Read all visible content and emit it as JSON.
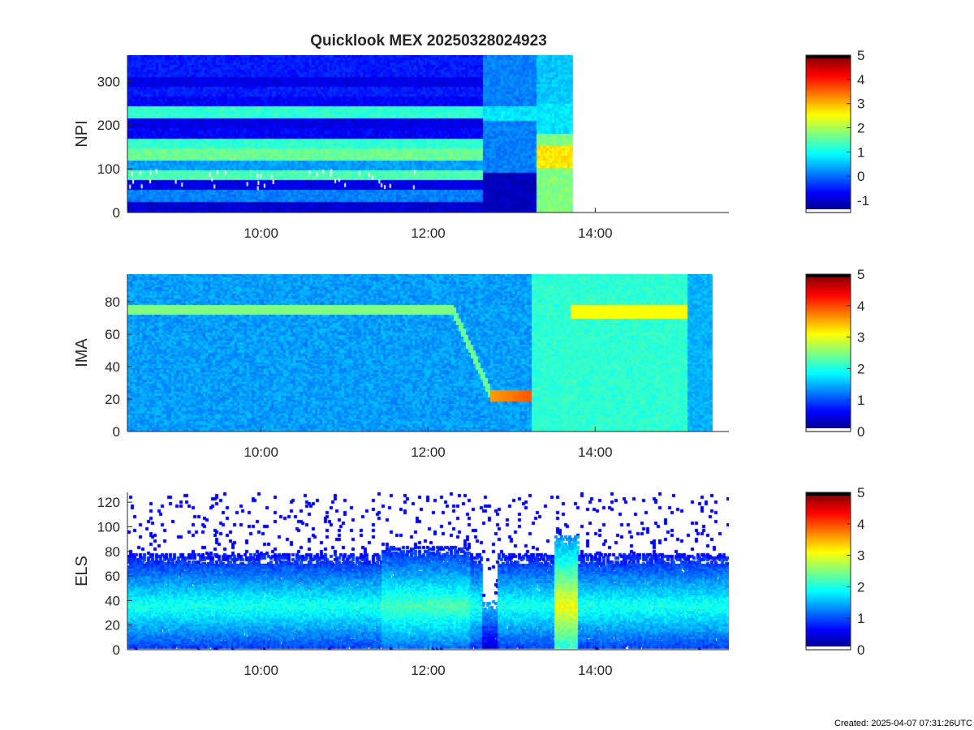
{
  "figure": {
    "title": "Quicklook MEX 20250328024923",
    "created_label": "Created: 2025-04-07 07:31:26UTC"
  },
  "chart_data": [
    {
      "type": "heatmap",
      "title": "Quicklook MEX 20250328024923",
      "ylabel": "NPI",
      "x_ticks": [
        "10:00",
        "12:00",
        "14:00"
      ],
      "x_tick_hours": [
        10,
        12,
        14
      ],
      "xlim_hours": [
        8.4,
        15.6
      ],
      "y_ticks": [
        0,
        100,
        200,
        300
      ],
      "ylim": [
        0,
        360
      ],
      "data_extent_hours": [
        8.4,
        13.72
      ],
      "colorbar": {
        "ticks": [
          -1,
          0,
          1,
          2,
          3,
          4,
          5
        ],
        "range": [
          -1.5,
          5
        ],
        "colormap": "jet"
      }
    },
    {
      "type": "heatmap",
      "ylabel": "IMA",
      "x_ticks": [
        "10:00",
        "12:00",
        "14:00"
      ],
      "x_tick_hours": [
        10,
        12,
        14
      ],
      "xlim_hours": [
        8.4,
        15.6
      ],
      "y_ticks": [
        0,
        20,
        40,
        60,
        80
      ],
      "ylim": [
        0,
        97
      ],
      "data_extent_hours": [
        8.4,
        15.4
      ],
      "colorbar": {
        "ticks": [
          0,
          1,
          2,
          3,
          4,
          5
        ],
        "range": [
          0,
          5
        ],
        "colormap": "jet"
      }
    },
    {
      "type": "heatmap",
      "ylabel": "ELS",
      "x_ticks": [
        "10:00",
        "12:00",
        "14:00"
      ],
      "x_tick_hours": [
        10,
        12,
        14
      ],
      "xlim_hours": [
        8.4,
        15.6
      ],
      "y_ticks": [
        0,
        20,
        40,
        60,
        80,
        100,
        120
      ],
      "ylim": [
        0,
        128
      ],
      "data_extent_hours": [
        8.4,
        15.6
      ],
      "colorbar": {
        "ticks": [
          0,
          1,
          2,
          3,
          4,
          5
        ],
        "range": [
          0,
          5
        ],
        "colormap": "jet"
      }
    }
  ]
}
